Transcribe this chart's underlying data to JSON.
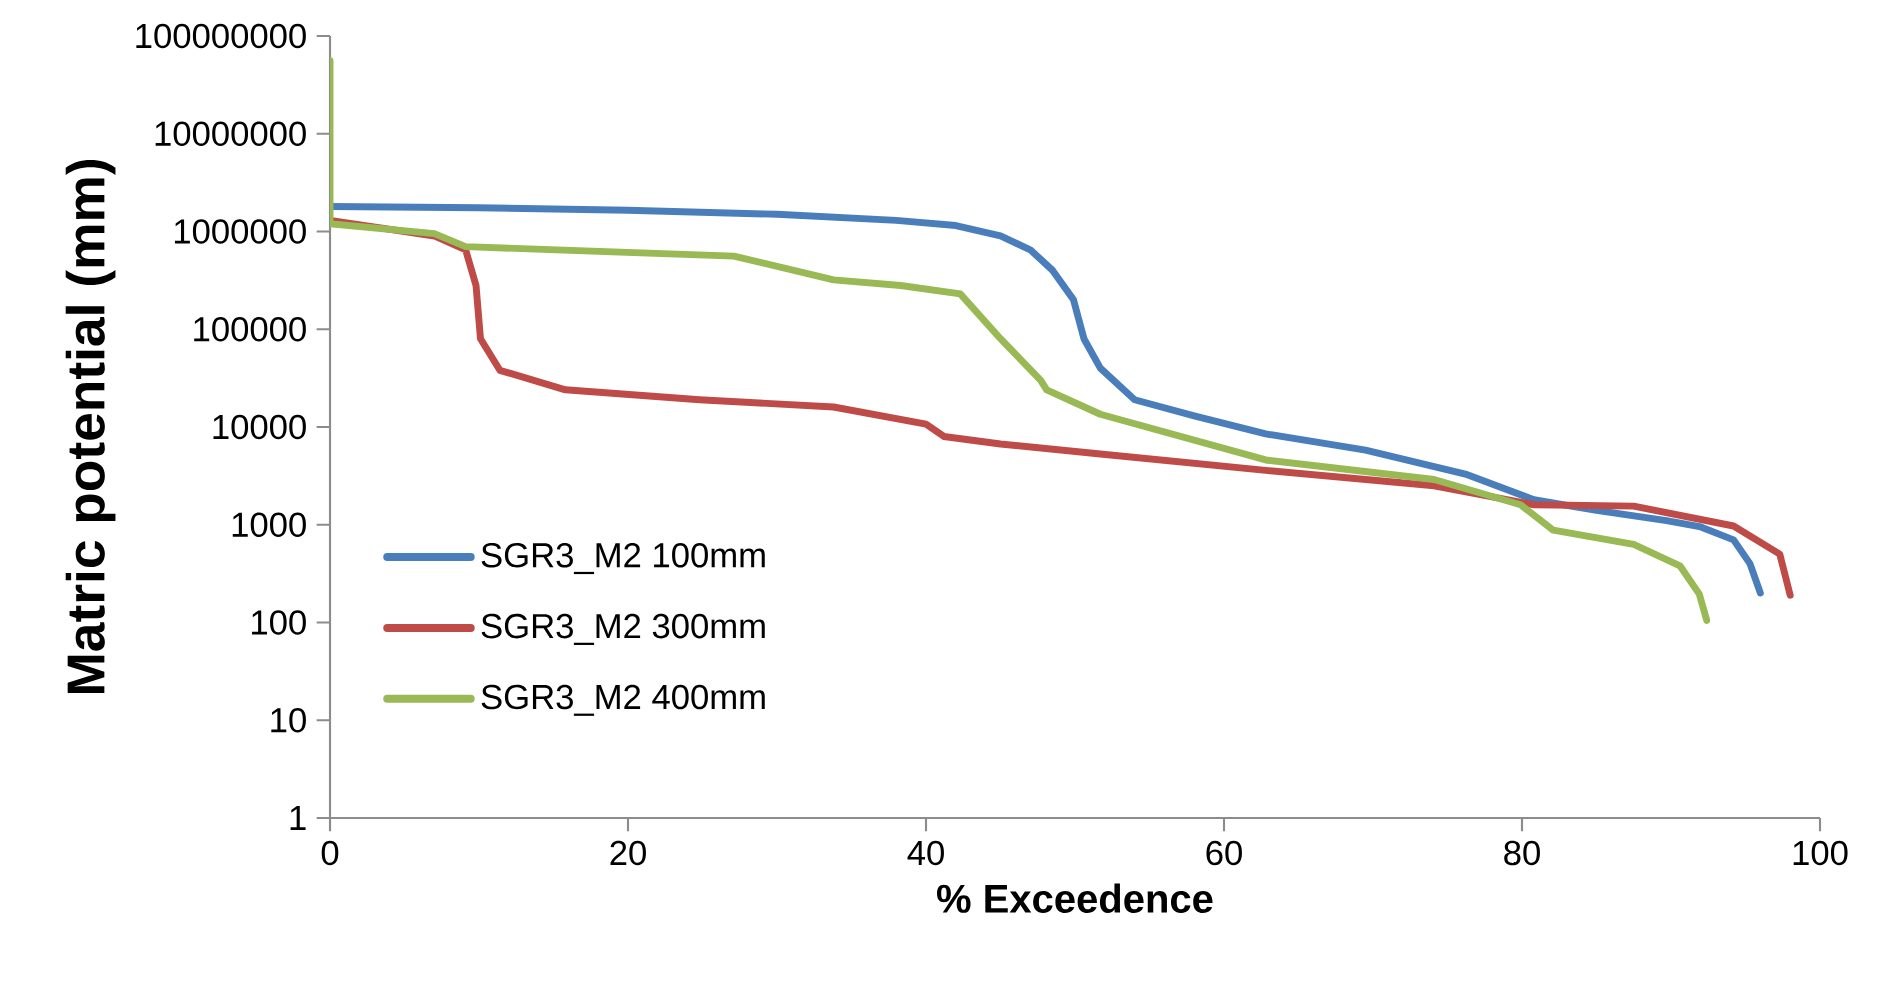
{
  "chart_data": {
    "type": "line",
    "xlabel": "% Exceedence",
    "ylabel": "Matric potential (mm)",
    "log": "y",
    "grid": false,
    "legend": "bottom left",
    "marker": "none",
    "line_style": "solid",
    "xlim": [
      0,
      100
    ],
    "xticks": [
      0,
      20,
      40,
      60,
      80,
      100
    ],
    "ylim": [
      1,
      100000000
    ],
    "yticks": [
      1,
      10,
      100,
      1000,
      10000,
      100000,
      1000000,
      10000000,
      100000000
    ],
    "series": [
      {
        "name": "SGR3_M2 100mm",
        "color": "#4a7ebb",
        "x": [
          0,
          10,
          20,
          30,
          38,
          42,
          45,
          47,
          48.5,
          49.9,
          50.6,
          51.7,
          54,
          58,
          62.8,
          69.5,
          76.2,
          80.8,
          85,
          89.7,
          92,
          94.2,
          95.3,
          96
        ],
        "values": [
          1800000,
          1750000,
          1650000,
          1500000,
          1300000,
          1150000,
          900000,
          650000,
          400000,
          200000,
          80000,
          40000,
          19000,
          13000,
          8500,
          5800,
          3300,
          1800,
          1400,
          1100,
          950,
          700,
          400,
          200
        ]
      },
      {
        "name": "SGR3_M2 300mm",
        "color": "#be4b48",
        "x": [
          0,
          7,
          9.1,
          9.8,
          10.1,
          11.4,
          15.8,
          24.8,
          33.8,
          40,
          41.2,
          45,
          51.7,
          62.8,
          74.1,
          80.8,
          87.5,
          94.2,
          97.3,
          98
        ],
        "values": [
          1300000,
          900000,
          650000,
          280000,
          80000,
          38000,
          24000,
          19000,
          16000,
          10700,
          8000,
          6700,
          5300,
          3600,
          2500,
          1600,
          1550,
          970,
          500,
          190
        ]
      },
      {
        "name": "SGR3_M2 400mm",
        "color": "#98b954",
        "x": [
          0,
          0,
          7,
          9.1,
          27.1,
          33.8,
          38.3,
          42.3,
          45,
          47.7,
          48.1,
          51.7,
          62.8,
          74.1,
          79.9,
          82.1,
          87.5,
          90.6,
          91.9,
          92.4
        ],
        "values": [
          56000000,
          1200000,
          950000,
          700000,
          560000,
          320000,
          280000,
          230000,
          80000,
          30000,
          24000,
          13500,
          4600,
          2900,
          1600,
          880,
          630,
          380,
          195,
          105
        ]
      }
    ]
  }
}
